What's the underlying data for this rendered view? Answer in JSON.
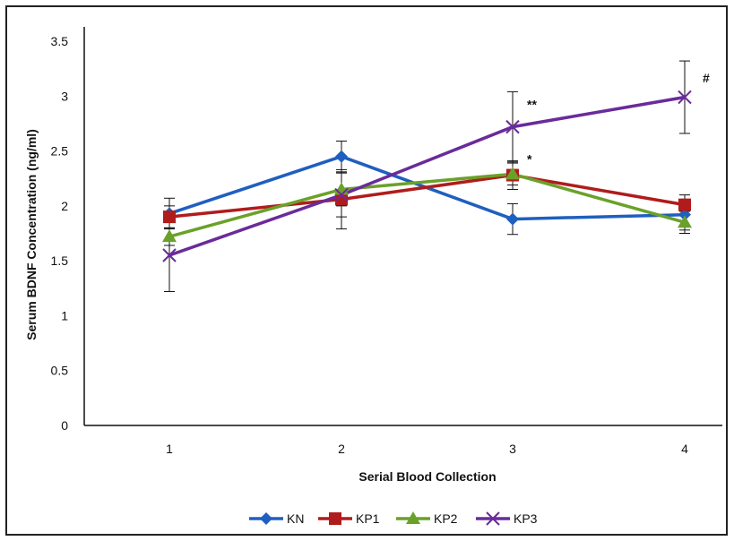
{
  "chart_data": {
    "type": "line",
    "title": "",
    "xlabel": "Serial Blood Collection",
    "ylabel": "Serum BDNF Concentration (ng/ml)",
    "categories": [
      "1",
      "2",
      "3",
      "4"
    ],
    "ylim": [
      0,
      3.5
    ],
    "yticks": [
      "0",
      "0.5",
      "1",
      "1.5",
      "2",
      "2.5",
      "3",
      "3.5"
    ],
    "grid": false,
    "legend_position": "bottom",
    "series": [
      {
        "name": "KN",
        "color": "#1f5fbf",
        "marker": "diamond",
        "values": [
          1.93,
          2.45,
          1.88,
          1.92
        ],
        "errors": [
          0.14,
          0.14,
          0.14,
          0.14
        ]
      },
      {
        "name": "KP1",
        "color": "#b01c1c",
        "marker": "square",
        "values": [
          1.9,
          2.06,
          2.28,
          2.01
        ],
        "errors": [
          0.1,
          0.27,
          0.13,
          0.09
        ]
      },
      {
        "name": "KP2",
        "color": "#6aa12a",
        "marker": "triangle",
        "values": [
          1.72,
          2.15,
          2.29,
          1.85
        ],
        "errors": [
          0.08,
          0.15,
          0.1,
          0.1
        ]
      },
      {
        "name": "KP3",
        "color": "#6a2b9a",
        "marker": "x",
        "values": [
          1.55,
          2.1,
          2.72,
          2.99
        ],
        "errors": [
          0.33,
          0.2,
          0.32,
          0.33
        ]
      }
    ],
    "annotations": [
      {
        "text": "**",
        "series": "KP3",
        "x": "3"
      },
      {
        "text": "*",
        "series": "KP2",
        "x": "3"
      },
      {
        "text": "#",
        "series": "KP3",
        "x": "4"
      }
    ]
  }
}
